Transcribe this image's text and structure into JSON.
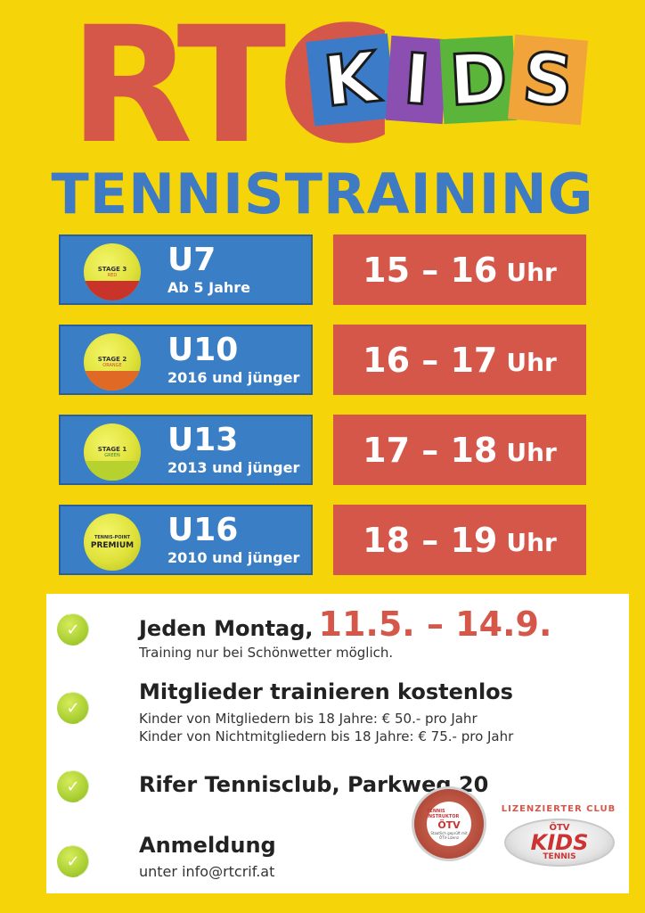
{
  "header": {
    "logo_rtc": "RTC",
    "logo_kids": [
      "K",
      "I",
      "D",
      "S"
    ],
    "title": "TENNISTRAINING"
  },
  "schedule": [
    {
      "ball_label": "STAGE 3",
      "ball_sub": "RED",
      "ball_band_color": "#c8342a",
      "age": "U7",
      "sub": "Ab 5 Jahre",
      "time": "15 – 16",
      "unit": "Uhr"
    },
    {
      "ball_label": "STAGE 2",
      "ball_sub": "ORANGE",
      "ball_band_color": "#e06a25",
      "age": "U10",
      "sub": "2016 und jünger",
      "time": "16 – 17",
      "unit": "Uhr"
    },
    {
      "ball_label": "STAGE 1",
      "ball_sub": "GREEN",
      "ball_band_color": "#b7d12e",
      "age": "U13",
      "sub": "2013 und jünger",
      "time": "17 – 18",
      "unit": "Uhr"
    },
    {
      "ball_label": "TENNIS-POINT",
      "ball_sub": "PREMIUM",
      "ball_band_color": "#dfe23a",
      "age": "U16",
      "sub": "2010 und jünger",
      "time": "18 – 19",
      "unit": "Uhr"
    }
  ],
  "info": {
    "item1": {
      "head": "Jeden Montag,",
      "dates": "11.5. – 14.9.",
      "sub": "Training nur bei Schönwetter möglich."
    },
    "item2": {
      "head": "Mitglieder trainieren kostenlos",
      "sub1": "Kinder von Mitgliedern bis 18 Jahre: € 50.- pro Jahr",
      "sub2": "Kinder von Nichtmitgliedern bis 18 Jahre: € 75.- pro Jahr"
    },
    "item3": {
      "head": "Rifer Tennisclub, Parkweg 20"
    },
    "item4": {
      "head": "Anmeldung",
      "sub": "unter info@rtcrif.at"
    }
  },
  "badges": {
    "oti_top": "TENNIS INSTRUKTOR",
    "oti_name": "ÖTV",
    "oti_sub": "Staatlich geprüft mit ÖTV-Lizenz",
    "club_arc": "LIZENZIERTER CLUB",
    "club_oti": "ÖTV",
    "club_kids": "KIDS",
    "club_tennis": "TENNIS"
  },
  "colors": {
    "background": "#f5d40a",
    "blue": "#3a7ec6",
    "red": "#d5574a",
    "title": "#3e7bc4"
  }
}
